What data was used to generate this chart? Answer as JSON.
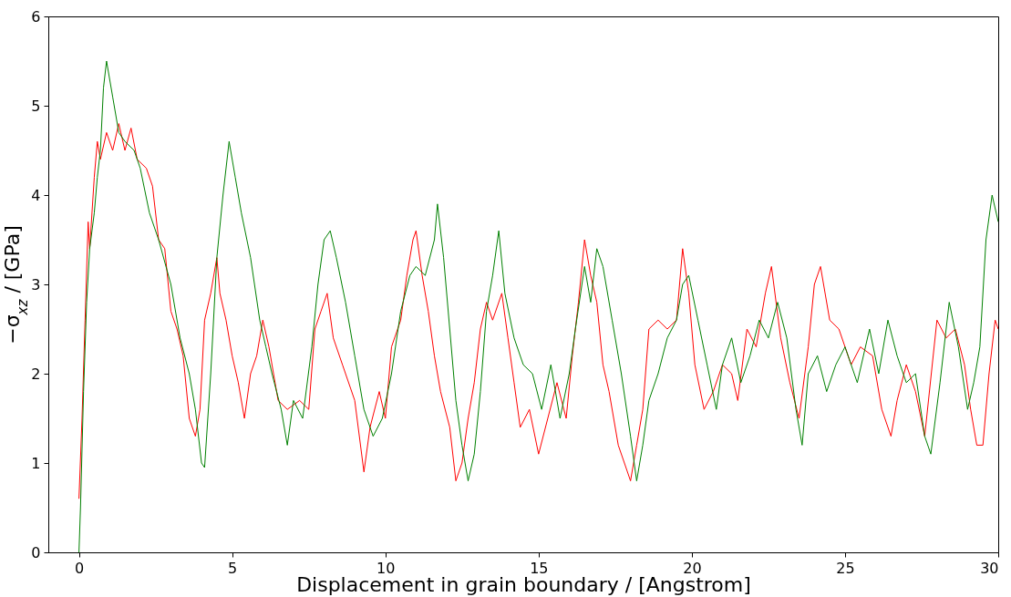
{
  "chart_data": {
    "type": "line",
    "xlabel": "Displacement in grain boundary / [Angstrom]",
    "ylabel": "−σ$_{xz}$ / [GPa]",
    "xlim": [
      -1,
      30
    ],
    "xticks": [
      0,
      5,
      10,
      15,
      20,
      25,
      30
    ],
    "ylim": [
      0,
      6
    ],
    "yticks": [
      0,
      1,
      2,
      3,
      4,
      5,
      6
    ],
    "grid": false,
    "line_style": "solid",
    "marker": "none",
    "series": [
      {
        "color": "#ff0000",
        "x": [
          0,
          0.1,
          0.2,
          0.3,
          0.35,
          0.5,
          0.6,
          0.7,
          0.9,
          1.1,
          1.3,
          1.5,
          1.7,
          1.9,
          2.2,
          2.4,
          2.6,
          2.8,
          3.0,
          3.2,
          3.4,
          3.6,
          3.8,
          3.95,
          4.1,
          4.3,
          4.5,
          4.6,
          4.8,
          5.0,
          5.2,
          5.4,
          5.6,
          5.8,
          6.0,
          6.2,
          6.5,
          6.8,
          7.2,
          7.5,
          7.7,
          7.9,
          8.1,
          8.3,
          8.6,
          9.0,
          9.3,
          9.5,
          9.8,
          10.0,
          10.2,
          10.5,
          10.7,
          10.9,
          11.0,
          11.2,
          11.4,
          11.6,
          11.8,
          12.1,
          12.3,
          12.5,
          12.7,
          12.9,
          13.1,
          13.3,
          13.5,
          13.8,
          14.0,
          14.2,
          14.4,
          14.7,
          15.0,
          15.3,
          15.6,
          15.9,
          16.1,
          16.3,
          16.5,
          16.7,
          16.9,
          17.1,
          17.3,
          17.6,
          17.8,
          18.0,
          18.2,
          18.4,
          18.6,
          18.9,
          19.2,
          19.5,
          19.7,
          19.9,
          20.1,
          20.4,
          20.7,
          21.0,
          21.3,
          21.5,
          21.8,
          22.1,
          22.4,
          22.6,
          22.9,
          23.2,
          23.5,
          23.8,
          24.0,
          24.2,
          24.5,
          24.8,
          25.2,
          25.5,
          25.9,
          26.2,
          26.5,
          26.7,
          27.0,
          27.3,
          27.6,
          28.0,
          28.3,
          28.6,
          28.9,
          29.1,
          29.3,
          29.5,
          29.7,
          29.9,
          30.0
        ],
        "values": [
          0.6,
          1.5,
          2.6,
          3.7,
          3.4,
          4.2,
          4.6,
          4.4,
          4.7,
          4.5,
          4.8,
          4.5,
          4.75,
          4.4,
          4.3,
          4.1,
          3.5,
          3.4,
          2.7,
          2.5,
          2.2,
          1.5,
          1.3,
          1.6,
          2.6,
          2.9,
          3.3,
          2.9,
          2.6,
          2.2,
          1.9,
          1.5,
          2.0,
          2.2,
          2.6,
          2.3,
          1.7,
          1.6,
          1.7,
          1.6,
          2.5,
          2.7,
          2.9,
          2.4,
          2.1,
          1.7,
          0.9,
          1.4,
          1.8,
          1.5,
          2.3,
          2.6,
          3.1,
          3.5,
          3.6,
          3.1,
          2.7,
          2.2,
          1.8,
          1.4,
          0.8,
          1.0,
          1.5,
          1.9,
          2.5,
          2.8,
          2.6,
          2.9,
          2.4,
          1.9,
          1.4,
          1.6,
          1.1,
          1.5,
          1.9,
          1.5,
          2.2,
          2.8,
          3.5,
          3.1,
          2.8,
          2.1,
          1.8,
          1.2,
          1.0,
          0.8,
          1.2,
          1.6,
          2.5,
          2.6,
          2.5,
          2.6,
          3.4,
          2.9,
          2.1,
          1.6,
          1.8,
          2.1,
          2.0,
          1.7,
          2.5,
          2.3,
          2.9,
          3.2,
          2.4,
          1.9,
          1.5,
          2.3,
          3.0,
          3.2,
          2.6,
          2.5,
          2.1,
          2.3,
          2.2,
          1.6,
          1.3,
          1.7,
          2.1,
          1.8,
          1.3,
          2.6,
          2.4,
          2.5,
          2.1,
          1.6,
          1.2,
          1.2,
          2.0,
          2.6,
          2.5
        ]
      },
      {
        "color": "#008000",
        "x": [
          0,
          0.05,
          0.15,
          0.25,
          0.35,
          0.5,
          0.6,
          0.7,
          0.8,
          0.9,
          1.1,
          1.3,
          1.5,
          1.8,
          2.0,
          2.3,
          2.6,
          3.0,
          3.3,
          3.6,
          3.8,
          4.0,
          4.1,
          4.3,
          4.5,
          4.7,
          4.9,
          5.1,
          5.3,
          5.6,
          5.9,
          6.1,
          6.3,
          6.6,
          6.8,
          7.0,
          7.3,
          7.6,
          7.8,
          8.0,
          8.2,
          8.4,
          8.7,
          9.0,
          9.3,
          9.6,
          9.9,
          10.2,
          10.5,
          10.8,
          11.0,
          11.3,
          11.6,
          11.7,
          11.9,
          12.1,
          12.3,
          12.5,
          12.7,
          12.9,
          13.1,
          13.3,
          13.5,
          13.7,
          13.9,
          14.2,
          14.5,
          14.8,
          15.1,
          15.4,
          15.7,
          16.0,
          16.2,
          16.5,
          16.7,
          16.9,
          17.1,
          17.4,
          17.7,
          18.0,
          18.2,
          18.4,
          18.6,
          18.9,
          19.2,
          19.5,
          19.7,
          19.9,
          20.2,
          20.5,
          20.8,
          21.0,
          21.3,
          21.6,
          21.9,
          22.2,
          22.5,
          22.8,
          23.1,
          23.4,
          23.6,
          23.8,
          24.1,
          24.4,
          24.7,
          25.0,
          25.4,
          25.8,
          26.1,
          26.4,
          26.7,
          27.0,
          27.3,
          27.6,
          27.8,
          28.1,
          28.4,
          28.7,
          29.0,
          29.2,
          29.4,
          29.6,
          29.8,
          30.0
        ],
        "values": [
          0.0,
          0.5,
          1.8,
          2.8,
          3.4,
          3.8,
          4.2,
          4.5,
          5.2,
          5.5,
          5.1,
          4.7,
          4.6,
          4.5,
          4.3,
          3.8,
          3.5,
          3.0,
          2.4,
          2.0,
          1.6,
          1.0,
          0.95,
          2.0,
          3.3,
          4.0,
          4.6,
          4.2,
          3.8,
          3.3,
          2.6,
          2.3,
          2.0,
          1.6,
          1.2,
          1.7,
          1.5,
          2.3,
          3.0,
          3.5,
          3.6,
          3.3,
          2.8,
          2.2,
          1.6,
          1.3,
          1.5,
          2.0,
          2.7,
          3.1,
          3.2,
          3.1,
          3.5,
          3.9,
          3.3,
          2.5,
          1.7,
          1.2,
          0.8,
          1.1,
          1.8,
          2.7,
          3.1,
          3.6,
          2.9,
          2.4,
          2.1,
          2.0,
          1.6,
          2.1,
          1.5,
          2.0,
          2.5,
          3.2,
          2.8,
          3.4,
          3.2,
          2.6,
          2.0,
          1.3,
          0.8,
          1.2,
          1.7,
          2.0,
          2.4,
          2.6,
          3.0,
          3.1,
          2.6,
          2.1,
          1.6,
          2.1,
          2.4,
          1.9,
          2.2,
          2.6,
          2.4,
          2.8,
          2.4,
          1.6,
          1.2,
          2.0,
          2.2,
          1.8,
          2.1,
          2.3,
          1.9,
          2.5,
          2.0,
          2.6,
          2.2,
          1.9,
          2.0,
          1.3,
          1.1,
          1.9,
          2.8,
          2.3,
          1.6,
          1.9,
          2.3,
          3.5,
          4.0,
          3.7
        ]
      }
    ]
  }
}
